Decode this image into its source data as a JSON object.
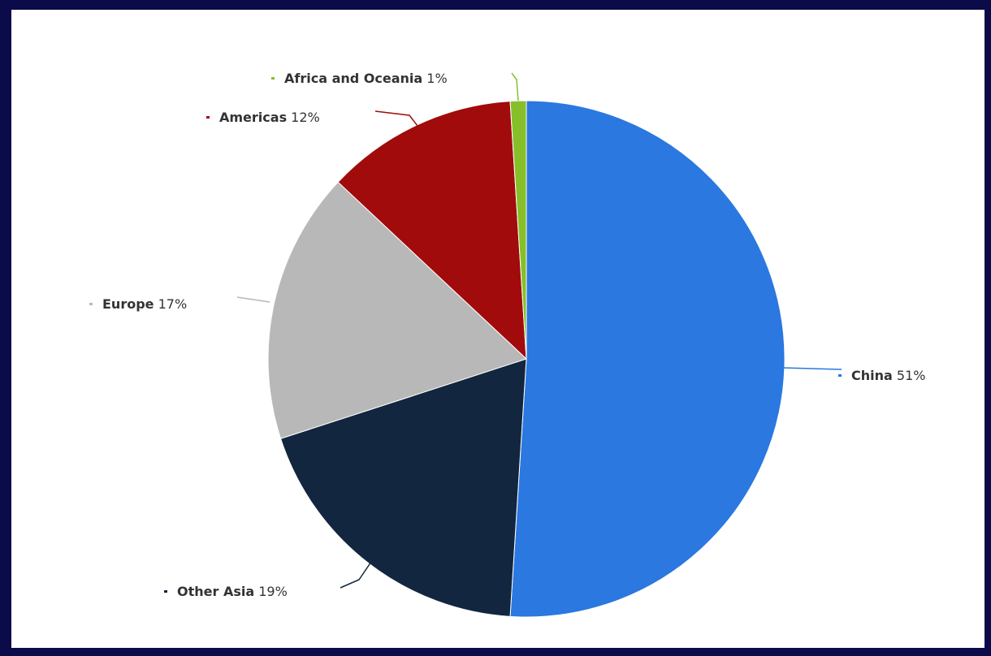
{
  "chart_data": {
    "type": "pie",
    "slices": [
      {
        "label": "China",
        "value": 51,
        "value_text": "51%",
        "color": "#2a78e0"
      },
      {
        "label": "Other Asia",
        "value": 19,
        "value_text": "19%",
        "color": "#13263f"
      },
      {
        "label": "Europe",
        "value": 17,
        "value_text": "17%",
        "color": "#b8b8b8"
      },
      {
        "label": "Americas",
        "value": 12,
        "value_text": "12%",
        "color": "#a10b0b"
      },
      {
        "label": "Africa and Oceania",
        "value": 1,
        "value_text": "1%",
        "color": "#86bf2a"
      }
    ],
    "start_angle": "12 o'clock, clockwise",
    "legend": "none (data labels with leader lines)"
  }
}
